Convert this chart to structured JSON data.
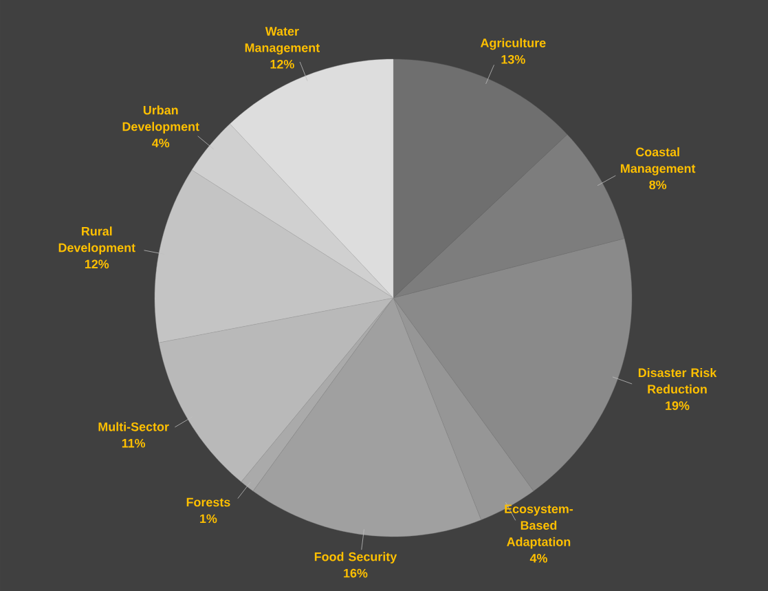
{
  "chart_data": {
    "type": "pie",
    "categories": [
      "Agriculture",
      "Coastal Management",
      "Disaster Risk Reduction",
      "Ecosystem-Based Adaptation",
      "Food Security",
      "Forests",
      "Multi-Sector",
      "Rural Development",
      "Urban Development",
      "Water Management"
    ],
    "values": [
      13,
      8,
      19,
      4,
      16,
      1,
      11,
      12,
      4,
      12
    ],
    "value_labels": [
      "13%",
      "8%",
      "19%",
      "4%",
      "16%",
      "1%",
      "11%",
      "12%",
      "4%",
      "12%"
    ],
    "colors": [
      "#6f6f6f",
      "#7d7d7d",
      "#8a8a8a",
      "#969696",
      "#a0a0a0",
      "#aaaaaa",
      "#b9b9b9",
      "#c4c4c4",
      "#d0d0d0",
      "#dddddd"
    ]
  }
}
